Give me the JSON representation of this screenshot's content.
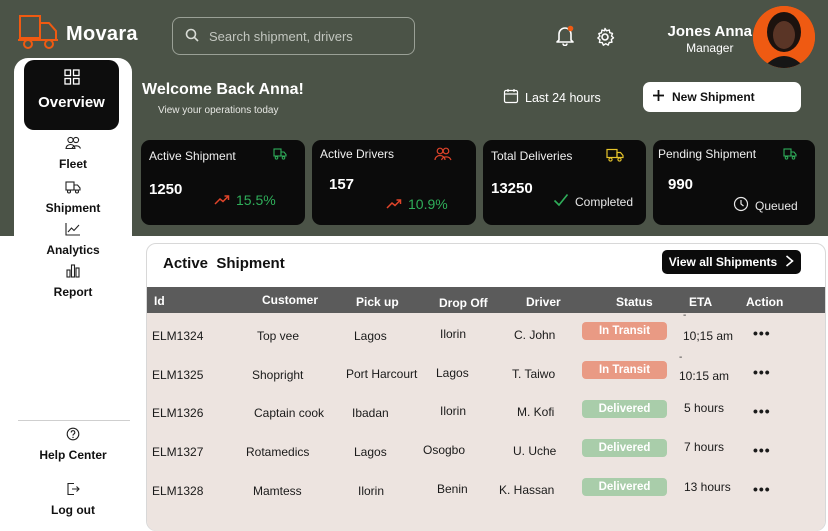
{
  "app": {
    "name": "Movara"
  },
  "search": {
    "placeholder": "Search shipment, drivers"
  },
  "user": {
    "name": "Jones Anna",
    "role": "Manager"
  },
  "sidebar": {
    "items": [
      {
        "label": "Overview",
        "icon": "grid-icon",
        "active": true
      },
      {
        "label": "Fleet",
        "icon": "users-icon"
      },
      {
        "label": "Shipment",
        "icon": "truck-icon"
      },
      {
        "label": "Analytics",
        "icon": "line-chart-icon"
      },
      {
        "label": "Report",
        "icon": "bar-chart-icon"
      }
    ],
    "footer": [
      {
        "label": "Help Center",
        "icon": "help-icon"
      },
      {
        "label": "Log out",
        "icon": "logout-icon"
      }
    ]
  },
  "welcome": {
    "title": "Welcome Back Anna!",
    "subtitle": "View your operations today"
  },
  "date_range": "Last 24 hours",
  "new_shipment_label": "New Shipment",
  "stats": [
    {
      "title": "Active Shipment",
      "value": "1250",
      "trend": "15.5%",
      "icon": "truck-icon",
      "icon_color": "#2fae5a"
    },
    {
      "title": "Active Drivers",
      "value": "157",
      "trend": "10.9%",
      "icon": "users-icon",
      "icon_color": "#e0442a"
    },
    {
      "title": "Total Deliveries",
      "value": "13250",
      "note": "Completed",
      "icon": "truck-icon",
      "icon_color": "#e6c42b"
    },
    {
      "title": "Pending Shipment",
      "value": "990",
      "note": "Queued",
      "icon": "truck-icon",
      "icon_color": "#2fae5a"
    }
  ],
  "table": {
    "title": "Active  Shipment",
    "view_all_label": "View all Shipments",
    "columns": [
      "Id",
      "Customer",
      "Pick up",
      "Drop Off",
      "Driver",
      "Status",
      "ETA",
      "Action"
    ],
    "rows": [
      {
        "id": "ELM1324",
        "customer": "Top vee",
        "pickup": "Lagos",
        "dropoff": "Ilorin",
        "driver": "C. John",
        "status": "In Transit",
        "eta": "10;15 am",
        "eta_prefix": "-",
        "action": "•••"
      },
      {
        "id": "ELM1325",
        "customer": "Shopright",
        "pickup": "Port Harcourt",
        "dropoff": "Lagos",
        "driver": "T. Taiwo",
        "status": "In Transit",
        "eta": "10:15 am",
        "eta_prefix": "-",
        "action": "•••"
      },
      {
        "id": "ELM1326",
        "customer": "Captain cook",
        "pickup": "Ibadan",
        "dropoff": "Ilorin",
        "driver": "M. Kofi",
        "status": "Delivered",
        "eta": "5 hours",
        "action": "•••"
      },
      {
        "id": "ELM1327",
        "customer": "Rotamedics",
        "pickup": "Lagos",
        "dropoff": "Osogbo",
        "driver": "U. Uche",
        "status": "Delivered",
        "eta": "7 hours",
        "action": "•••"
      },
      {
        "id": "ELM1328",
        "customer": "Mamtess",
        "pickup": "Ilorin",
        "dropoff": "Benin",
        "driver": "K. Hassan",
        "status": "Delivered",
        "eta": "13 hours",
        "action": "•••"
      }
    ]
  },
  "colors": {
    "header_bg": "#4b5347",
    "card_bg": "#0b0b0b",
    "accent_orange": "#ef5a12",
    "trend_green": "#2fae5a",
    "status_in_transit": "#e99a84",
    "status_delivered": "#a9cdaa"
  }
}
